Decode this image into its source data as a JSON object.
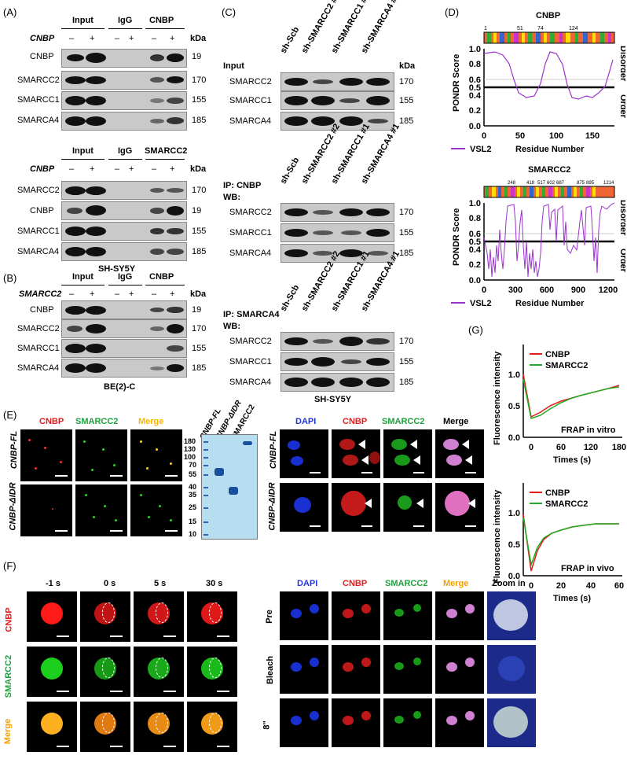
{
  "panels": {
    "A": {
      "label": "(A)",
      "top": {
        "headers": [
          "Input",
          "IgG",
          "CNBP"
        ],
        "gene": "CNBP",
        "minus": "–",
        "plus": "+",
        "kda": "kDa",
        "rows": [
          {
            "name": "CNBP",
            "kda": "19"
          },
          {
            "name": "SMARCC2",
            "kda": "170"
          },
          {
            "name": "SMARCC1",
            "kda": "155"
          },
          {
            "name": "SMARCA4",
            "kda": "185"
          }
        ]
      },
      "bottom": {
        "headers": [
          "Input",
          "IgG",
          "SMARCC2"
        ],
        "gene": "CNBP",
        "kda": "kDa",
        "rows": [
          {
            "name": "SMARCC2",
            "kda": "170"
          },
          {
            "name": "CNBP",
            "kda": "19"
          },
          {
            "name": "SMARCC1",
            "kda": "155"
          },
          {
            "name": "SMARCA4",
            "kda": "185"
          }
        ],
        "cell": "SH-SY5Y"
      }
    },
    "B": {
      "label": "(B)",
      "headers": [
        "Input",
        "IgG",
        "CNBP"
      ],
      "gene": "SMARCC2",
      "kda": "kDa",
      "rows": [
        {
          "name": "CNBP",
          "kda": "19"
        },
        {
          "name": "SMARCC2",
          "kda": "170"
        },
        {
          "name": "SMARCC1",
          "kda": "155"
        },
        {
          "name": "SMARCA4",
          "kda": "185"
        }
      ],
      "cell": "BE(2)-C"
    },
    "C": {
      "label": "(C)",
      "lanes": [
        "sh-Scb",
        "sh-SMARCC2 #2",
        "sh-SMARCC1 #1",
        "sh-SMARCA4 #1"
      ],
      "blocks": [
        {
          "title1": "Input",
          "title2": "",
          "rows": [
            {
              "name": "SMARCC2",
              "kda": "170"
            },
            {
              "name": "SMARCC1",
              "kda": "155"
            },
            {
              "name": "SMARCA4",
              "kda": "185"
            }
          ]
        },
        {
          "title1": "IP: CNBP",
          "title2": "WB:",
          "rows": [
            {
              "name": "SMARCC2",
              "kda": "170"
            },
            {
              "name": "SMARCC1",
              "kda": "155"
            },
            {
              "name": "SMARCA4",
              "kda": "185"
            }
          ]
        },
        {
          "title1": "IP: SMARCA4",
          "title2": "WB:",
          "rows": [
            {
              "name": "SMARCC2",
              "kda": "170"
            },
            {
              "name": "SMARCC1",
              "kda": "155"
            },
            {
              "name": "SMARCA4",
              "kda": "185"
            }
          ]
        }
      ],
      "kda": "kDa",
      "cell": "SH-SY5Y"
    },
    "D": {
      "label": "(D)",
      "ylabel": "PONDR Score",
      "xlabel": "Residue Number",
      "legend": "VSL2",
      "disorder": "Disorder",
      "order": "Order",
      "plot1": {
        "title": "CNBP",
        "ticks": [
          "1",
          "51",
          "74",
          "124"
        ],
        "yticks": [
          "0.0",
          "0.2",
          "0.4",
          "0.5",
          "0.6",
          "0.8",
          "1.0"
        ],
        "xticks": [
          "0",
          "50",
          "100",
          "150"
        ]
      },
      "plot2": {
        "title": "SMARCC2",
        "ticks": [
          "248",
          "418",
          "517",
          "602",
          "687",
          "875",
          "895",
          "1214"
        ],
        "yticks": [
          "0.0",
          "0.2",
          "0.4",
          "0.5",
          "0.6",
          "0.8",
          "1.0"
        ],
        "xticks": [
          "0",
          "300",
          "600",
          "900",
          "1200"
        ]
      }
    },
    "E": {
      "label": "(E)",
      "cols": [
        "CNBP",
        "SMARCC2",
        "Merge"
      ],
      "rows": [
        "CNBP-FL",
        "CNBP-ΔIDR"
      ],
      "gel_lanes": [
        "CNBP-FL",
        "CNBP-ΔIDR",
        "SMARCC2"
      ],
      "gel_markers": [
        "180",
        "130",
        "100",
        "70",
        "55",
        "40",
        "35",
        "25",
        "15",
        "10"
      ],
      "ifcols": [
        "DAPI",
        "CNBP",
        "SMARCC2",
        "Merge"
      ]
    },
    "F": {
      "label": "(F)",
      "times": [
        "-1 s",
        "0 s",
        "5 s",
        "30 s"
      ],
      "rows": [
        "CNBP",
        "SMARCC2",
        "Merge"
      ],
      "ifcols": [
        "DAPI",
        "CNBP",
        "SMARCC2",
        "Merge",
        "Zoom in"
      ],
      "ifrows": [
        "Pre",
        "Bleach",
        "8''"
      ]
    },
    "G": {
      "label": "(G)",
      "ylabel": "Fluorescence intensity",
      "xlabel": "Times (s)",
      "legend": [
        "CNBP",
        "SMARCC2"
      ],
      "plot1": {
        "caption": "FRAP in vitro",
        "xticks": [
          "0",
          "60",
          "120",
          "180"
        ],
        "yticks": [
          "0.0",
          "0.5",
          "1.0"
        ]
      },
      "plot2": {
        "caption": "FRAP in vivo",
        "xticks": [
          "0",
          "20",
          "40",
          "60"
        ],
        "yticks": [
          "0.0",
          "0.5",
          "1.0"
        ]
      }
    }
  }
}
